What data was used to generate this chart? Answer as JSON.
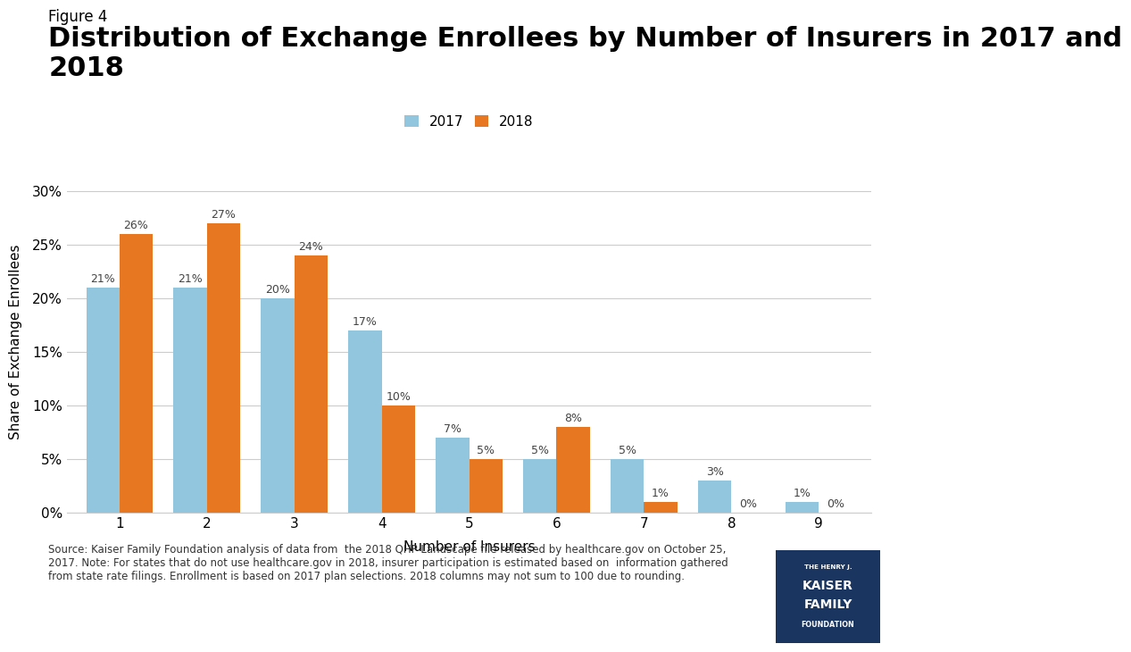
{
  "title_label": "Figure 4",
  "title": "Distribution of Exchange Enrollees by Number of Insurers in 2017 and\n2018",
  "xlabel": "Number of Insurers",
  "ylabel": "Share of Exchange Enrollees",
  "categories": [
    1,
    2,
    3,
    4,
    5,
    6,
    7,
    8,
    9
  ],
  "values_2017": [
    21,
    21,
    20,
    17,
    7,
    5,
    5,
    3,
    1
  ],
  "values_2018": [
    26,
    27,
    24,
    10,
    5,
    8,
    1,
    0,
    0
  ],
  "labels_2017": [
    "21%",
    "21%",
    "20%",
    "17%",
    "7%",
    "5%",
    "5%",
    "3%",
    "1%"
  ],
  "labels_2018": [
    "26%",
    "27%",
    "24%",
    "10%",
    "5%",
    "8%",
    "1%",
    "0%",
    "0%"
  ],
  "color_2017": "#92C5DE",
  "color_2018": "#E87722",
  "ylim": [
    0,
    32
  ],
  "yticks": [
    0,
    5,
    10,
    15,
    20,
    25,
    30
  ],
  "ytick_labels": [
    "0%",
    "5%",
    "10%",
    "15%",
    "20%",
    "25%",
    "30%"
  ],
  "legend_labels": [
    "2017",
    "2018"
  ],
  "bar_width": 0.38,
  "source_text": "Source: Kaiser Family Foundation analysis of data from  the 2018 QHP Landscape file released by healthcare.gov on October 25,\n2017. Note: For states that do not use healthcare.gov in 2018, insurer participation is estimated based on  information gathered\nfrom state rate filings. Enrollment is based on 2017 plan selections. 2018 columns may not sum to 100 due to rounding.",
  "background_color": "#ffffff",
  "grid_color": "#cccccc",
  "label_fontsize": 9,
  "axis_fontsize": 11,
  "title_fontsize": 22,
  "title_label_fontsize": 12,
  "logo_color": "#1a3560"
}
